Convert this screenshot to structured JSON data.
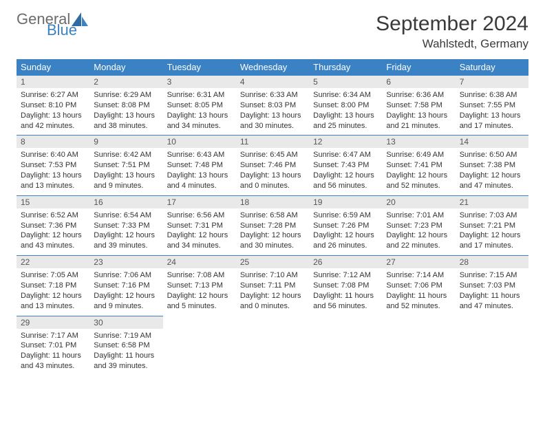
{
  "brand": {
    "part1": "General",
    "part2": "Blue",
    "gray": "#6b6b6b",
    "blue": "#3b82c4"
  },
  "title": "September 2024",
  "location": "Wahlstedt, Germany",
  "colors": {
    "header_bg": "#3b82c4",
    "header_fg": "#ffffff",
    "daynum_bg": "#e9e9e9",
    "daynum_border": "#3b82c4",
    "text": "#333333"
  },
  "weekdays": [
    "Sunday",
    "Monday",
    "Tuesday",
    "Wednesday",
    "Thursday",
    "Friday",
    "Saturday"
  ],
  "weeks": [
    [
      {
        "n": "1",
        "sr": "Sunrise: 6:27 AM",
        "ss": "Sunset: 8:10 PM",
        "d1": "Daylight: 13 hours",
        "d2": "and 42 minutes."
      },
      {
        "n": "2",
        "sr": "Sunrise: 6:29 AM",
        "ss": "Sunset: 8:08 PM",
        "d1": "Daylight: 13 hours",
        "d2": "and 38 minutes."
      },
      {
        "n": "3",
        "sr": "Sunrise: 6:31 AM",
        "ss": "Sunset: 8:05 PM",
        "d1": "Daylight: 13 hours",
        "d2": "and 34 minutes."
      },
      {
        "n": "4",
        "sr": "Sunrise: 6:33 AM",
        "ss": "Sunset: 8:03 PM",
        "d1": "Daylight: 13 hours",
        "d2": "and 30 minutes."
      },
      {
        "n": "5",
        "sr": "Sunrise: 6:34 AM",
        "ss": "Sunset: 8:00 PM",
        "d1": "Daylight: 13 hours",
        "d2": "and 25 minutes."
      },
      {
        "n": "6",
        "sr": "Sunrise: 6:36 AM",
        "ss": "Sunset: 7:58 PM",
        "d1": "Daylight: 13 hours",
        "d2": "and 21 minutes."
      },
      {
        "n": "7",
        "sr": "Sunrise: 6:38 AM",
        "ss": "Sunset: 7:55 PM",
        "d1": "Daylight: 13 hours",
        "d2": "and 17 minutes."
      }
    ],
    [
      {
        "n": "8",
        "sr": "Sunrise: 6:40 AM",
        "ss": "Sunset: 7:53 PM",
        "d1": "Daylight: 13 hours",
        "d2": "and 13 minutes."
      },
      {
        "n": "9",
        "sr": "Sunrise: 6:42 AM",
        "ss": "Sunset: 7:51 PM",
        "d1": "Daylight: 13 hours",
        "d2": "and 9 minutes."
      },
      {
        "n": "10",
        "sr": "Sunrise: 6:43 AM",
        "ss": "Sunset: 7:48 PM",
        "d1": "Daylight: 13 hours",
        "d2": "and 4 minutes."
      },
      {
        "n": "11",
        "sr": "Sunrise: 6:45 AM",
        "ss": "Sunset: 7:46 PM",
        "d1": "Daylight: 13 hours",
        "d2": "and 0 minutes."
      },
      {
        "n": "12",
        "sr": "Sunrise: 6:47 AM",
        "ss": "Sunset: 7:43 PM",
        "d1": "Daylight: 12 hours",
        "d2": "and 56 minutes."
      },
      {
        "n": "13",
        "sr": "Sunrise: 6:49 AM",
        "ss": "Sunset: 7:41 PM",
        "d1": "Daylight: 12 hours",
        "d2": "and 52 minutes."
      },
      {
        "n": "14",
        "sr": "Sunrise: 6:50 AM",
        "ss": "Sunset: 7:38 PM",
        "d1": "Daylight: 12 hours",
        "d2": "and 47 minutes."
      }
    ],
    [
      {
        "n": "15",
        "sr": "Sunrise: 6:52 AM",
        "ss": "Sunset: 7:36 PM",
        "d1": "Daylight: 12 hours",
        "d2": "and 43 minutes."
      },
      {
        "n": "16",
        "sr": "Sunrise: 6:54 AM",
        "ss": "Sunset: 7:33 PM",
        "d1": "Daylight: 12 hours",
        "d2": "and 39 minutes."
      },
      {
        "n": "17",
        "sr": "Sunrise: 6:56 AM",
        "ss": "Sunset: 7:31 PM",
        "d1": "Daylight: 12 hours",
        "d2": "and 34 minutes."
      },
      {
        "n": "18",
        "sr": "Sunrise: 6:58 AM",
        "ss": "Sunset: 7:28 PM",
        "d1": "Daylight: 12 hours",
        "d2": "and 30 minutes."
      },
      {
        "n": "19",
        "sr": "Sunrise: 6:59 AM",
        "ss": "Sunset: 7:26 PM",
        "d1": "Daylight: 12 hours",
        "d2": "and 26 minutes."
      },
      {
        "n": "20",
        "sr": "Sunrise: 7:01 AM",
        "ss": "Sunset: 7:23 PM",
        "d1": "Daylight: 12 hours",
        "d2": "and 22 minutes."
      },
      {
        "n": "21",
        "sr": "Sunrise: 7:03 AM",
        "ss": "Sunset: 7:21 PM",
        "d1": "Daylight: 12 hours",
        "d2": "and 17 minutes."
      }
    ],
    [
      {
        "n": "22",
        "sr": "Sunrise: 7:05 AM",
        "ss": "Sunset: 7:18 PM",
        "d1": "Daylight: 12 hours",
        "d2": "and 13 minutes."
      },
      {
        "n": "23",
        "sr": "Sunrise: 7:06 AM",
        "ss": "Sunset: 7:16 PM",
        "d1": "Daylight: 12 hours",
        "d2": "and 9 minutes."
      },
      {
        "n": "24",
        "sr": "Sunrise: 7:08 AM",
        "ss": "Sunset: 7:13 PM",
        "d1": "Daylight: 12 hours",
        "d2": "and 5 minutes."
      },
      {
        "n": "25",
        "sr": "Sunrise: 7:10 AM",
        "ss": "Sunset: 7:11 PM",
        "d1": "Daylight: 12 hours",
        "d2": "and 0 minutes."
      },
      {
        "n": "26",
        "sr": "Sunrise: 7:12 AM",
        "ss": "Sunset: 7:08 PM",
        "d1": "Daylight: 11 hours",
        "d2": "and 56 minutes."
      },
      {
        "n": "27",
        "sr": "Sunrise: 7:14 AM",
        "ss": "Sunset: 7:06 PM",
        "d1": "Daylight: 11 hours",
        "d2": "and 52 minutes."
      },
      {
        "n": "28",
        "sr": "Sunrise: 7:15 AM",
        "ss": "Sunset: 7:03 PM",
        "d1": "Daylight: 11 hours",
        "d2": "and 47 minutes."
      }
    ],
    [
      {
        "n": "29",
        "sr": "Sunrise: 7:17 AM",
        "ss": "Sunset: 7:01 PM",
        "d1": "Daylight: 11 hours",
        "d2": "and 43 minutes."
      },
      {
        "n": "30",
        "sr": "Sunrise: 7:19 AM",
        "ss": "Sunset: 6:58 PM",
        "d1": "Daylight: 11 hours",
        "d2": "and 39 minutes."
      },
      null,
      null,
      null,
      null,
      null
    ]
  ]
}
